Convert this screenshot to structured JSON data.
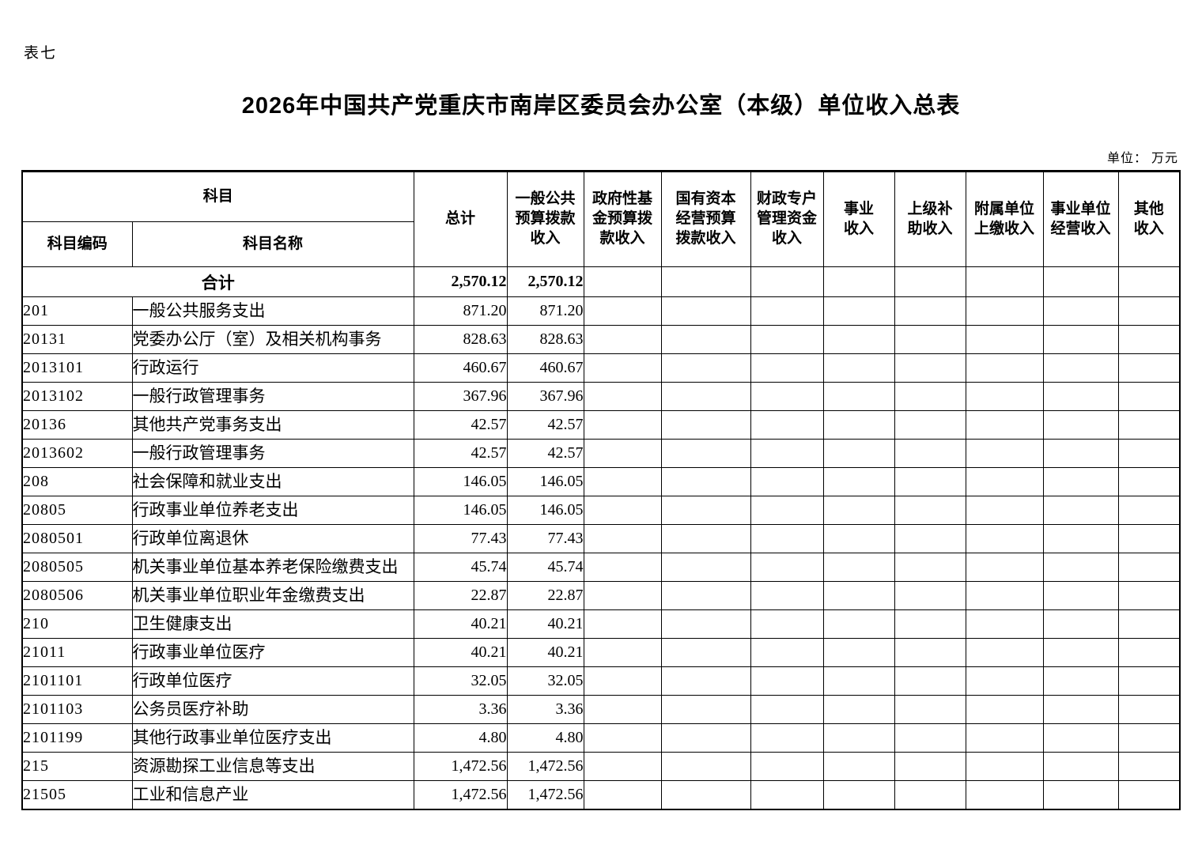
{
  "page": {
    "sheet_label": "表七",
    "title": "2026年中国共产党重庆市南岸区委员会办公室（本级）单位收入总表",
    "unit_note": "单位： 万元"
  },
  "table": {
    "subject_header": "科目",
    "code_header": "科目编码",
    "name_header": "科目名称",
    "value_columns": [
      "总计",
      "一般公共\n预算拨款\n收入",
      "政府性基\n金预算拨\n款收入",
      "国有资本\n经营预算\n拨款收入",
      "财政专户\n管理资金\n收入",
      "事业\n收入",
      "上级补\n助收入",
      "附属单位\n上缴收入",
      "事业单位\n经营收入",
      "其他\n收入"
    ],
    "total_row": {
      "label": "合计",
      "values": [
        "2,570.12",
        "2,570.12",
        "",
        "",
        "",
        "",
        "",
        "",
        "",
        ""
      ]
    },
    "rows": [
      {
        "code": "201",
        "name": "一般公共服务支出",
        "level": 1,
        "values": [
          "871.20",
          "871.20"
        ]
      },
      {
        "code": "20131",
        "name": "党委办公厅（室）及相关机构事务",
        "level": 2,
        "values": [
          "828.63",
          "828.63"
        ]
      },
      {
        "code": "2013101",
        "name": "行政运行",
        "level": 3,
        "values": [
          "460.67",
          "460.67"
        ]
      },
      {
        "code": "2013102",
        "name": "一般行政管理事务",
        "level": 3,
        "values": [
          "367.96",
          "367.96"
        ]
      },
      {
        "code": "20136",
        "name": "其他共产党事务支出",
        "level": 2,
        "values": [
          "42.57",
          "42.57"
        ]
      },
      {
        "code": "2013602",
        "name": "一般行政管理事务",
        "level": 3,
        "values": [
          "42.57",
          "42.57"
        ]
      },
      {
        "code": "208",
        "name": "社会保障和就业支出",
        "level": 1,
        "values": [
          "146.05",
          "146.05"
        ]
      },
      {
        "code": "20805",
        "name": "行政事业单位养老支出",
        "level": 2,
        "values": [
          "146.05",
          "146.05"
        ]
      },
      {
        "code": "2080501",
        "name": "行政单位离退休",
        "level": 3,
        "values": [
          "77.43",
          "77.43"
        ]
      },
      {
        "code": "2080505",
        "name": "机关事业单位基本养老保险缴费支出",
        "level": 3,
        "values": [
          "45.74",
          "45.74"
        ]
      },
      {
        "code": "2080506",
        "name": "机关事业单位职业年金缴费支出",
        "level": 3,
        "values": [
          "22.87",
          "22.87"
        ]
      },
      {
        "code": "210",
        "name": "卫生健康支出",
        "level": 1,
        "values": [
          "40.21",
          "40.21"
        ]
      },
      {
        "code": "21011",
        "name": "行政事业单位医疗",
        "level": 2,
        "values": [
          "40.21",
          "40.21"
        ]
      },
      {
        "code": "2101101",
        "name": "行政单位医疗",
        "level": 3,
        "values": [
          "32.05",
          "32.05"
        ]
      },
      {
        "code": "2101103",
        "name": "公务员医疗补助",
        "level": 3,
        "values": [
          "3.36",
          "3.36"
        ]
      },
      {
        "code": "2101199",
        "name": "其他行政事业单位医疗支出",
        "level": 3,
        "values": [
          "4.80",
          "4.80"
        ]
      },
      {
        "code": "215",
        "name": "资源勘探工业信息等支出",
        "level": 1,
        "values": [
          "1,472.56",
          "1,472.56"
        ]
      },
      {
        "code": "21505",
        "name": "工业和信息产业",
        "level": 2,
        "values": [
          "1,472.56",
          "1,472.56"
        ]
      }
    ]
  }
}
